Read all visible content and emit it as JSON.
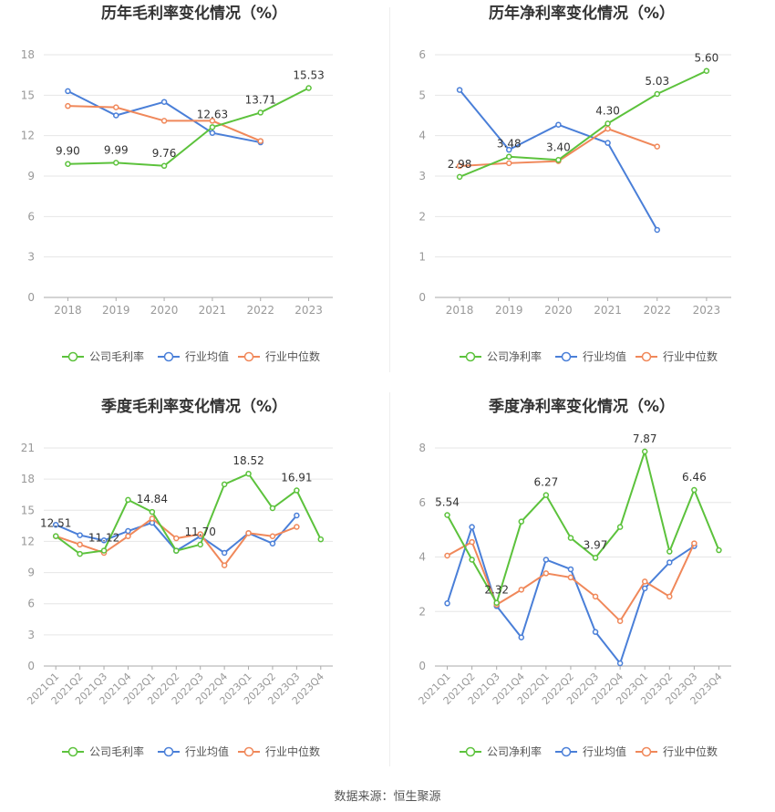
{
  "colors": {
    "company": "#5cc23c",
    "industry_avg": "#4a7fd8",
    "industry_median": "#f0885a",
    "grid": "#e6e6e6",
    "axis": "#999999",
    "label": "#333333"
  },
  "source_text": "数据来源：恒生聚源",
  "chart_data": [
    {
      "type": "line",
      "title": "历年毛利率变化情况（%）",
      "categories": [
        "2018",
        "2019",
        "2020",
        "2021",
        "2022",
        "2023"
      ],
      "ylim": [
        0,
        18
      ],
      "yticks": [
        0,
        3,
        6,
        9,
        12,
        15,
        18
      ],
      "grid": true,
      "legend_position": "bottom",
      "series": [
        {
          "name": "公司毛利率",
          "role": "company",
          "values": [
            9.9,
            9.99,
            9.76,
            12.63,
            13.71,
            15.53
          ]
        },
        {
          "name": "行业均值",
          "role": "industry_avg",
          "values": [
            15.3,
            13.5,
            14.5,
            12.2,
            11.5,
            null
          ]
        },
        {
          "name": "行业中位数",
          "role": "industry_median",
          "values": [
            14.2,
            14.1,
            13.1,
            13.1,
            11.6,
            null
          ]
        }
      ],
      "data_labels": [
        {
          "index": 0,
          "text": "9.90"
        },
        {
          "index": 1,
          "text": "9.99"
        },
        {
          "index": 2,
          "text": "9.76"
        },
        {
          "index": 3,
          "text": "12.63"
        },
        {
          "index": 4,
          "text": "13.71"
        },
        {
          "index": 5,
          "text": "15.53"
        }
      ]
    },
    {
      "type": "line",
      "title": "历年净利率变化情况（%）",
      "categories": [
        "2018",
        "2019",
        "2020",
        "2021",
        "2022",
        "2023"
      ],
      "ylim": [
        0,
        6
      ],
      "yticks": [
        0,
        1,
        2,
        3,
        4,
        5,
        6
      ],
      "grid": true,
      "legend_position": "bottom",
      "series": [
        {
          "name": "公司净利率",
          "role": "company",
          "values": [
            2.98,
            3.48,
            3.4,
            4.3,
            5.03,
            5.6
          ]
        },
        {
          "name": "行业均值",
          "role": "industry_avg",
          "values": [
            5.13,
            3.65,
            4.27,
            3.82,
            1.67,
            null
          ]
        },
        {
          "name": "行业中位数",
          "role": "industry_median",
          "values": [
            3.25,
            3.32,
            3.37,
            4.17,
            3.73,
            null
          ]
        }
      ],
      "data_labels": [
        {
          "index": 0,
          "text": "2.98"
        },
        {
          "index": 1,
          "text": "3.48"
        },
        {
          "index": 2,
          "text": "3.40"
        },
        {
          "index": 3,
          "text": "4.30"
        },
        {
          "index": 4,
          "text": "5.03"
        },
        {
          "index": 5,
          "text": "5.60"
        }
      ]
    },
    {
      "type": "line",
      "title": "季度毛利率变化情况（%）",
      "categories": [
        "2021Q1",
        "2021Q2",
        "2021Q3",
        "2021Q4",
        "2022Q1",
        "2022Q2",
        "2022Q3",
        "2022Q4",
        "2023Q1",
        "2023Q2",
        "2023Q3",
        "2023Q4"
      ],
      "ylim": [
        0,
        21
      ],
      "yticks": [
        0,
        3,
        6,
        9,
        12,
        15,
        18,
        21
      ],
      "grid": true,
      "legend_position": "bottom",
      "series": [
        {
          "name": "公司毛利率",
          "role": "company",
          "values": [
            12.51,
            10.8,
            11.12,
            16.0,
            14.84,
            11.1,
            11.7,
            17.5,
            18.52,
            15.2,
            16.91,
            12.2
          ]
        },
        {
          "name": "行业均值",
          "role": "industry_avg",
          "values": [
            13.6,
            12.6,
            12.1,
            13.0,
            13.8,
            11.1,
            12.5,
            10.9,
            12.8,
            11.8,
            14.5,
            null
          ]
        },
        {
          "name": "行业中位数",
          "role": "industry_median",
          "values": [
            12.5,
            11.7,
            10.9,
            12.5,
            14.2,
            12.3,
            12.7,
            9.7,
            12.8,
            12.5,
            13.4,
            null
          ]
        }
      ],
      "data_labels": [
        {
          "index": 0,
          "text": "12.51"
        },
        {
          "index": 2,
          "text": "11.12"
        },
        {
          "index": 4,
          "text": "14.84"
        },
        {
          "index": 6,
          "text": "11.70"
        },
        {
          "index": 8,
          "text": "18.52"
        },
        {
          "index": 10,
          "text": "16.91"
        }
      ]
    },
    {
      "type": "line",
      "title": "季度净利率变化情况（%）",
      "categories": [
        "2021Q1",
        "2021Q2",
        "2021Q3",
        "2021Q4",
        "2022Q1",
        "2022Q2",
        "2022Q3",
        "2022Q4",
        "2023Q1",
        "2023Q2",
        "2023Q3",
        "2023Q4"
      ],
      "ylim": [
        0,
        8
      ],
      "yticks": [
        0,
        2,
        4,
        6,
        8
      ],
      "grid": true,
      "legend_position": "bottom",
      "series": [
        {
          "name": "公司净利率",
          "role": "company",
          "values": [
            5.54,
            3.9,
            2.32,
            5.3,
            6.27,
            4.7,
            3.97,
            5.1,
            7.87,
            4.2,
            6.46,
            4.25
          ]
        },
        {
          "name": "行业均值",
          "role": "industry_avg",
          "values": [
            2.3,
            5.1,
            2.2,
            1.05,
            3.9,
            3.55,
            1.25,
            0.1,
            2.85,
            3.8,
            4.4,
            null
          ]
        },
        {
          "name": "行业中位数",
          "role": "industry_median",
          "values": [
            4.05,
            4.55,
            2.25,
            2.8,
            3.4,
            3.25,
            2.55,
            1.65,
            3.1,
            2.55,
            4.5,
            null
          ]
        }
      ],
      "data_labels": [
        {
          "index": 0,
          "text": "5.54"
        },
        {
          "index": 2,
          "text": "2.32"
        },
        {
          "index": 4,
          "text": "6.27"
        },
        {
          "index": 6,
          "text": "3.97"
        },
        {
          "index": 8,
          "text": "7.87"
        },
        {
          "index": 10,
          "text": "6.46"
        }
      ]
    }
  ]
}
